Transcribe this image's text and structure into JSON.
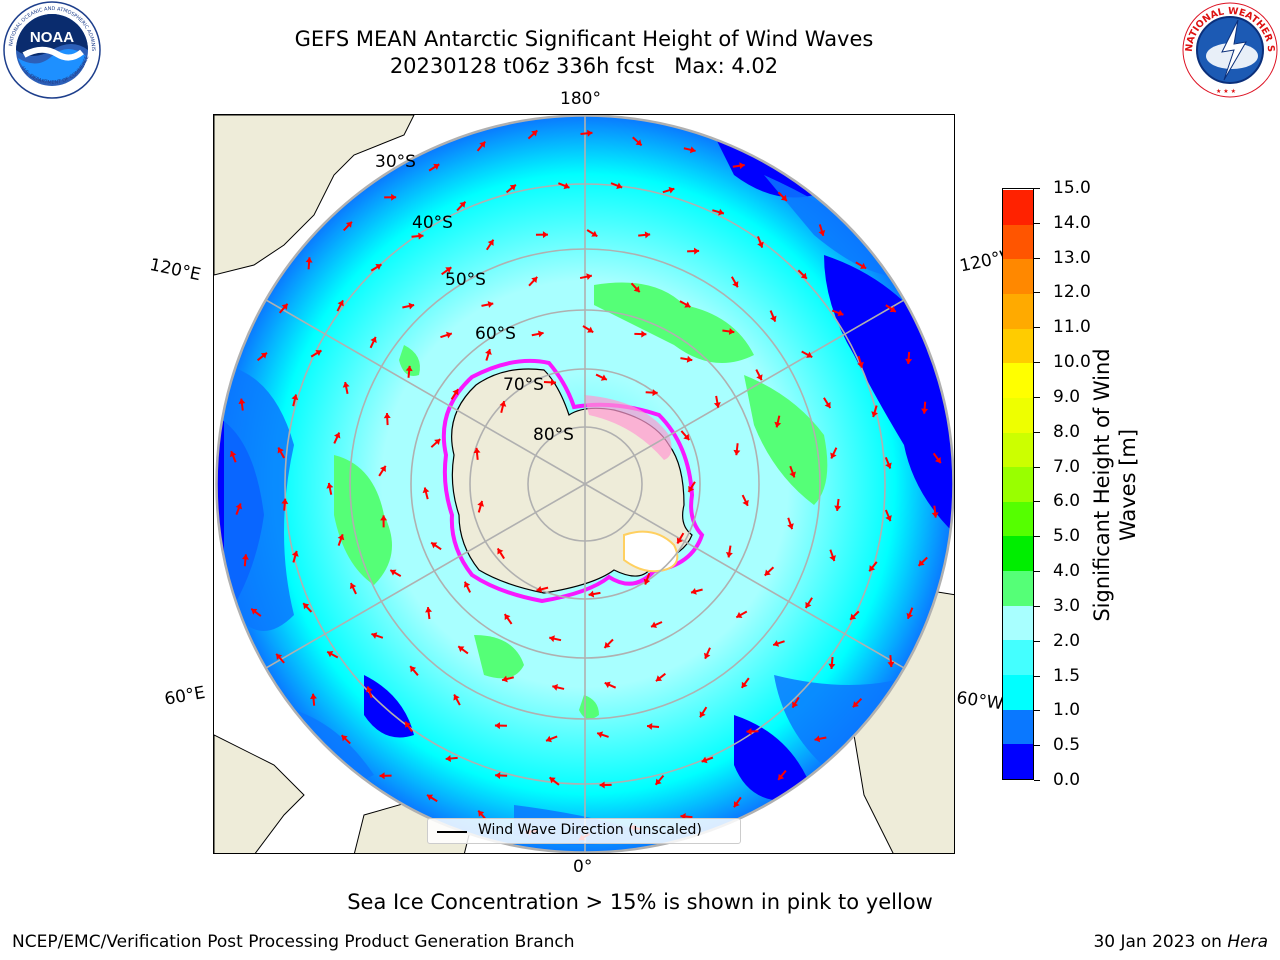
{
  "title": {
    "line1": "GEFS MEAN Antarctic Significant Height of Wind Waves",
    "line2": "20230128 t06z 336h fcst   Max: 4.02"
  },
  "logos": {
    "noaa": {
      "text": "NOAA",
      "ring_text": "NATIONAL OCEANIC AND ATMOSPHERIC ADMINISTRATION",
      "bottom_text": "U.S. DEPARTMENT OF COMMERCE"
    },
    "nws": {
      "ring_text": "NATIONAL WEATHER SERVICE"
    }
  },
  "map": {
    "projection": "south-polar-stereographic",
    "longitude_labels": {
      "top": "180°",
      "bottom": "0°",
      "left_upper": "120°E",
      "left_lower": "60°E",
      "right_upper": "120°W",
      "right_lower": "60°W"
    },
    "latitude_labels": [
      "30°S",
      "40°S",
      "50°S",
      "60°S",
      "70°S",
      "80°S"
    ],
    "colors": {
      "land": "#eeecd9",
      "grid": "#b0b0b0",
      "arrows": "#ff0000",
      "ice": [
        "#ff00ff",
        "#ff9ad2",
        "#ffd060",
        "#ffffff"
      ]
    }
  },
  "legend": {
    "label": "Wind Wave Direction (unscaled)"
  },
  "colorbar": {
    "title_line1": "Significant Height of Wind",
    "title_line2": "Waves [m]",
    "levels": [
      0.0,
      0.5,
      1.0,
      1.5,
      2.0,
      3.0,
      4.0,
      5.0,
      6.0,
      7.0,
      8.0,
      9.0,
      10.0,
      11.0,
      12.0,
      13.0,
      14.0,
      15.0
    ],
    "tick_labels": [
      "0.0",
      "0.5",
      "1.0",
      "1.5",
      "2.0",
      "3.0",
      "4.0",
      "5.0",
      "6.0",
      "7.0",
      "8.0",
      "9.0",
      "10.0",
      "11.0",
      "12.0",
      "13.0",
      "14.0",
      "15.0"
    ],
    "colors": [
      "#0000ff",
      "#0a78ff",
      "#00ffff",
      "#44ffff",
      "#a8ffff",
      "#55ff77",
      "#00ee00",
      "#55ff00",
      "#99ff00",
      "#ccff00",
      "#eeff00",
      "#ffff00",
      "#ffcc00",
      "#ffaa00",
      "#ff8800",
      "#ff5500",
      "#ff2200"
    ]
  },
  "subtitle": "Sea Ice Concentration > 15% is shown in pink to yellow",
  "footer": {
    "left": "NCEP/EMC/Verification Post Processing Product Generation Branch",
    "right_date": "30 Jan 2023 on",
    "right_machine": "Hera"
  }
}
